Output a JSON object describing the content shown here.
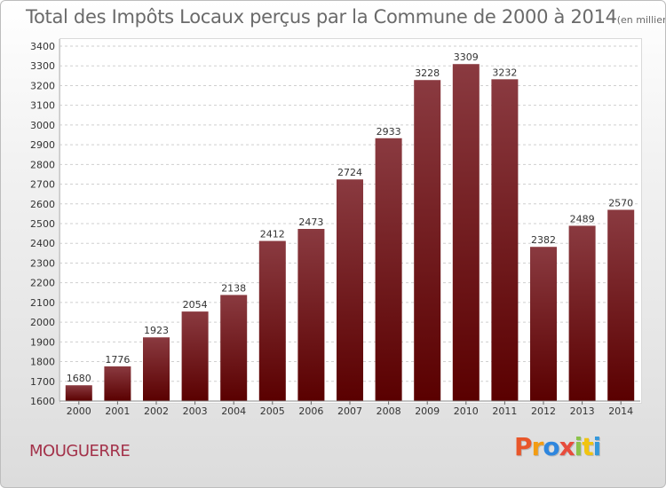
{
  "header": {
    "title": "Total des Impôts Locaux perçus par la Commune de 2000 à 2014",
    "unit": "(en milliers d'€)"
  },
  "footer": {
    "commune": "MOUGUERRE",
    "logo": "Proxiti",
    "logo_colors": [
      "#e8562a",
      "#f39c12",
      "#2e86de",
      "#e74c3c",
      "#8bc34a",
      "#f1c40f",
      "#3498db"
    ]
  },
  "colors": {
    "bar_top": "#8a3a40",
    "bar_bottom": "#5a0000",
    "grid": "#cfcfcf"
  },
  "chart_data": {
    "type": "bar",
    "title": "Total des Impôts Locaux perçus par la Commune de 2000 à 2014",
    "xlabel": "",
    "ylabel": "",
    "categories": [
      "2000",
      "2001",
      "2002",
      "2003",
      "2004",
      "2005",
      "2006",
      "2007",
      "2008",
      "2009",
      "2010",
      "2011",
      "2012",
      "2013",
      "2014"
    ],
    "values": [
      1680,
      1776,
      1923,
      2054,
      2138,
      2412,
      2473,
      2724,
      2933,
      3228,
      3309,
      3232,
      2382,
      2489,
      2570
    ],
    "ylim": [
      1600,
      3400
    ],
    "yticks": [
      1600,
      1700,
      1800,
      1900,
      2000,
      2100,
      2200,
      2300,
      2400,
      2500,
      2600,
      2700,
      2800,
      2900,
      3000,
      3100,
      3200,
      3300,
      3400
    ],
    "grid": "dashed horizontal",
    "data_labels": true
  }
}
